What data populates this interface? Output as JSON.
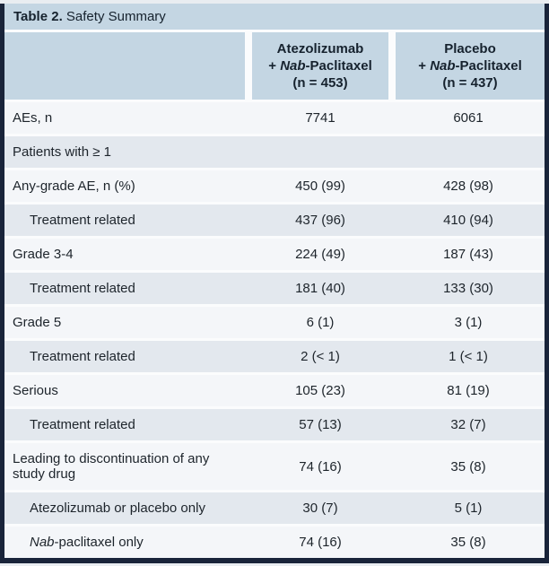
{
  "colors": {
    "frame_navy": "#19243a",
    "header_blue": "#c4d6e3",
    "row_light": "#f4f6f9",
    "row_gray": "#e3e8ee",
    "row_gap_white": "#fbfcfd"
  },
  "title": {
    "bold": "Table 2.",
    "text": " Safety Summary"
  },
  "table": {
    "columns": [
      {
        "line1": "Atezolizumab",
        "plus": "+ ",
        "drug_italic": "Nab",
        "drug_rest": "-Paclitaxel",
        "n": "(n = 453)"
      },
      {
        "line1": "Placebo",
        "plus": "+ ",
        "drug_italic": "Nab",
        "drug_rest": "-Paclitaxel",
        "n": "(n = 437)"
      }
    ],
    "rows": [
      {
        "label": "AEs, n",
        "values": [
          "7741",
          "6061"
        ]
      },
      {
        "label": "Patients with ≥ 1",
        "section": true
      },
      {
        "label": "Any-grade AE, n (%)",
        "values": [
          "450 (99)",
          "428 (98)"
        ]
      },
      {
        "label": "Treatment related",
        "indent": true,
        "values": [
          "437 (96)",
          "410 (94)"
        ]
      },
      {
        "label": "Grade 3-4",
        "values": [
          "224 (49)",
          "187 (43)"
        ]
      },
      {
        "label": "Treatment related",
        "indent": true,
        "values": [
          "181 (40)",
          "133 (30)"
        ]
      },
      {
        "label": "Grade 5",
        "values": [
          "6 (1)",
          "3 (1)"
        ]
      },
      {
        "label": "Treatment related",
        "indent": true,
        "values": [
          "2 (< 1)",
          "1 (< 1)"
        ]
      },
      {
        "label": "Serious",
        "values": [
          "105 (23)",
          "81 (19)"
        ]
      },
      {
        "label": "Treatment related",
        "indent": true,
        "values": [
          "57 (13)",
          "32 (7)"
        ]
      },
      {
        "label": "Leading to discontinuation of any study drug",
        "values": [
          "74 (16)",
          "35 (8)"
        ]
      },
      {
        "label": "Atezolizumab or placebo only",
        "indent": true,
        "values": [
          "30 (7)",
          "5 (1)"
        ]
      },
      {
        "label_italic": "Nab",
        "label": "-paclitaxel only",
        "indent": true,
        "values": [
          "74 (16)",
          "35 (8)"
        ]
      }
    ]
  }
}
